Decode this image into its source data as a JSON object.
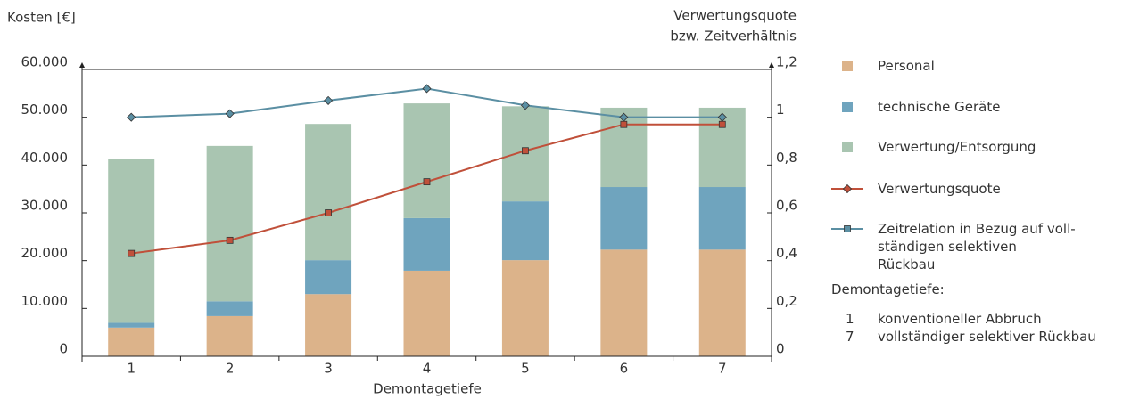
{
  "chart_data": {
    "type": "stacked_bar_line",
    "y_label": "Kosten [€]",
    "y2_label": [
      "Verwertungsquote",
      "bzw. Zeitverhältnis"
    ],
    "x_label": "Demontagetiefe",
    "categories": [
      "1",
      "2",
      "3",
      "4",
      "5",
      "6",
      "7"
    ],
    "series": [
      {
        "name": "Personal",
        "kind": "bar",
        "color": "#dcb38a",
        "values": [
          6000,
          8400,
          13000,
          17900,
          20100,
          22300,
          22300
        ]
      },
      {
        "name": "technische Geräte",
        "kind": "bar",
        "color": "#6fa4be",
        "values": [
          1000,
          3100,
          7100,
          11000,
          12300,
          13100,
          13100
        ]
      },
      {
        "name": "Verwertung/Entsorgung",
        "kind": "bar",
        "color": "#a9c5b1",
        "values": [
          34300,
          32500,
          28500,
          24000,
          19900,
          16600,
          16600
        ]
      },
      {
        "name": "Verwertungsquote",
        "kind": "line",
        "axis": "y2",
        "color": "#c0503a",
        "marker": "square",
        "legend_marker": "diamond",
        "values": [
          0.43,
          0.485,
          0.6,
          0.73,
          0.86,
          0.97,
          0.97
        ]
      },
      {
        "name": "Zeitrelation in Bezug auf voll­ständigen selektiven Rückbau",
        "kind": "line",
        "axis": "y2",
        "color": "#5b8fa3",
        "marker": "diamond",
        "legend_marker": "square",
        "values": [
          1.0,
          1.015,
          1.07,
          1.12,
          1.05,
          1.0,
          1.0
        ]
      }
    ],
    "ylim": [
      0,
      60000
    ],
    "yticks": [
      0,
      {
        "value": 10000,
        "label": "10.000"
      },
      {
        "value": 20000,
        "label": "20.000"
      },
      {
        "value": 30000,
        "label": "30.000"
      },
      {
        "value": 40000,
        "label": "40.000"
      },
      {
        "value": 50000,
        "label": "50.000"
      },
      {
        "value": 60000,
        "label": "60.000"
      }
    ],
    "y2lim": [
      0,
      1.2
    ],
    "y2ticks": [
      0,
      {
        "value": 0.2,
        "label": "0,2"
      },
      {
        "value": 0.4,
        "label": "0,4"
      },
      {
        "value": 0.6,
        "label": "0,6"
      },
      {
        "value": 0.8,
        "label": "0,8"
      },
      1,
      {
        "value": 1.2,
        "label": "1,2"
      }
    ],
    "legend": "right",
    "notes": {
      "title": "Demontagetiefe:",
      "items": [
        {
          "key": "1",
          "text": "konventioneller Abbruch"
        },
        {
          "key": "7",
          "text": "vollständiger selektiver Rückbau"
        }
      ]
    }
  }
}
